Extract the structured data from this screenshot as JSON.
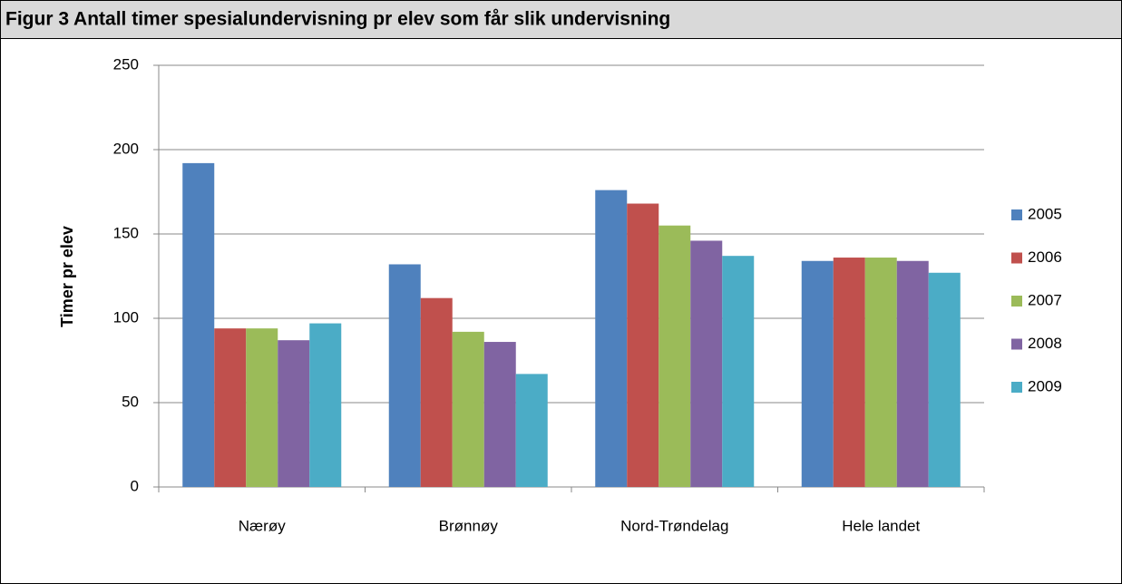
{
  "chart_data": {
    "type": "bar",
    "title": "Figur 3 Antall timer spesialundervisning pr elev som får slik undervisning",
    "y_label": "Timer pr elev",
    "categories": [
      "Nærøy",
      "Brønnøy",
      "Nord-Trøndelag",
      "Hele landet"
    ],
    "series": [
      {
        "name": "2005",
        "color": "#4f81bd",
        "values": [
          192,
          132,
          176,
          134
        ]
      },
      {
        "name": "2006",
        "color": "#c0504d",
        "values": [
          94,
          112,
          168,
          136
        ]
      },
      {
        "name": "2007",
        "color": "#9bbb59",
        "values": [
          94,
          92,
          155,
          136
        ]
      },
      {
        "name": "2008",
        "color": "#8064a2",
        "values": [
          87,
          86,
          146,
          134
        ]
      },
      {
        "name": "2009",
        "color": "#4bacc6",
        "values": [
          97,
          67,
          137,
          127
        ]
      }
    ],
    "ylim": [
      0,
      250
    ],
    "yticks": [
      0,
      50,
      100,
      150,
      200,
      250
    ],
    "grid": true,
    "legend": "right"
  }
}
